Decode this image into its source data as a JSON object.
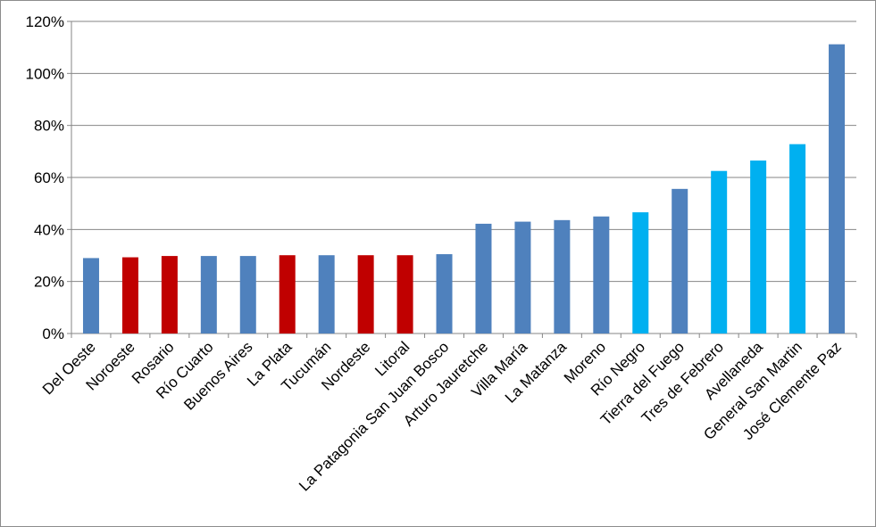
{
  "chart_data": {
    "type": "bar",
    "title": "",
    "xlabel": "",
    "ylabel": "",
    "ylim": [
      0,
      120
    ],
    "y_ticks": [
      "0%",
      "20%",
      "40%",
      "60%",
      "80%",
      "100%",
      "120%"
    ],
    "grid": true,
    "legend": "none",
    "colors": {
      "blue": "#4f81bd",
      "red": "#c00000",
      "cyan": "#00b0f0"
    },
    "categories": [
      "Del Oeste",
      "Noroeste",
      "Rosario",
      "Río Cuarto",
      "Buenos Aires",
      "La Plata",
      "Tucumán",
      "Nordeste",
      "Litoral",
      "La Patagonia San Juan Bosco",
      "Arturo Jauretche",
      "Villa María",
      "La Matanza",
      "Moreno",
      "Río Negro",
      "Tierra del Fuego",
      "Tres de Febrero",
      "Avellaneda",
      "General San Martin",
      "José Clemente Paz"
    ],
    "values": [
      29,
      29.3,
      29.8,
      29.8,
      29.8,
      30.1,
      30.1,
      30.1,
      30.1,
      30.5,
      42.2,
      43,
      43.6,
      45,
      46.6,
      55.6,
      62.5,
      66.5,
      72.8,
      111.2
    ],
    "bar_colors": [
      "blue",
      "red",
      "red",
      "blue",
      "blue",
      "red",
      "blue",
      "red",
      "red",
      "blue",
      "blue",
      "blue",
      "blue",
      "blue",
      "cyan",
      "blue",
      "cyan",
      "cyan",
      "cyan",
      "blue"
    ]
  }
}
